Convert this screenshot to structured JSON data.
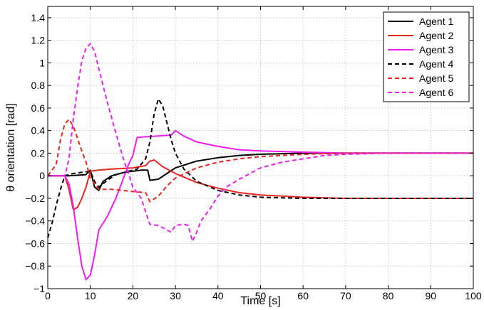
{
  "chart_data": {
    "type": "line",
    "title": "",
    "xlabel": "Time [s]",
    "ylabel": "θ orientation [rad]",
    "xlim": [
      0,
      100
    ],
    "ylim": [
      -1,
      1.5
    ],
    "x_ticks": [
      "0",
      "10",
      "20",
      "30",
      "40",
      "50",
      "60",
      "70",
      "80",
      "90",
      "100"
    ],
    "y_ticks": [
      "−1",
      "−0.8",
      "−0.6",
      "−0.4",
      "−0.2",
      "0",
      "0.2",
      "0.4",
      "0.6",
      "0.8",
      "1",
      "1.2",
      "1.4"
    ],
    "grid": true,
    "legend_position": "top-right",
    "series": [
      {
        "name": "Agent 1",
        "color": "#000000",
        "dash": "solid",
        "points": [
          [
            0,
            0
          ],
          [
            5,
            0
          ],
          [
            9,
            0.01
          ],
          [
            10,
            0.05
          ],
          [
            11,
            -0.1
          ],
          [
            12,
            -0.13
          ],
          [
            13,
            -0.05
          ],
          [
            15,
            0
          ],
          [
            18,
            0.03
          ],
          [
            22,
            0.05
          ],
          [
            23.5,
            0.05
          ],
          [
            24,
            -0.04
          ],
          [
            26,
            -0.03
          ],
          [
            28,
            0.02
          ],
          [
            30,
            0.07
          ],
          [
            35,
            0.13
          ],
          [
            40,
            0.16
          ],
          [
            45,
            0.18
          ],
          [
            50,
            0.19
          ],
          [
            60,
            0.2
          ],
          [
            70,
            0.2
          ],
          [
            80,
            0.2
          ],
          [
            90,
            0.2
          ],
          [
            100,
            0.2
          ]
        ]
      },
      {
        "name": "Agent 2",
        "color": "#e8251f",
        "dash": "solid",
        "points": [
          [
            0,
            0
          ],
          [
            4,
            0
          ],
          [
            5,
            -0.12
          ],
          [
            6,
            -0.3
          ],
          [
            7,
            -0.28
          ],
          [
            8,
            -0.2
          ],
          [
            9,
            -0.1
          ],
          [
            10,
            0.04
          ],
          [
            12,
            0.05
          ],
          [
            15,
            0.06
          ],
          [
            20,
            0.07
          ],
          [
            23,
            0.09
          ],
          [
            24,
            0.13
          ],
          [
            25,
            0.14
          ],
          [
            27,
            0.08
          ],
          [
            30,
            0.02
          ],
          [
            35,
            -0.06
          ],
          [
            40,
            -0.11
          ],
          [
            45,
            -0.15
          ],
          [
            50,
            -0.17
          ],
          [
            60,
            -0.19
          ],
          [
            70,
            -0.2
          ],
          [
            80,
            -0.2
          ],
          [
            90,
            -0.2
          ],
          [
            100,
            -0.2
          ]
        ]
      },
      {
        "name": "Agent 3",
        "color": "#f01cf0",
        "dash": "solid",
        "points": [
          [
            0,
            0
          ],
          [
            4,
            0
          ],
          [
            5,
            -0.07
          ],
          [
            6,
            -0.27
          ],
          [
            7,
            -0.55
          ],
          [
            8,
            -0.8
          ],
          [
            9,
            -0.92
          ],
          [
            10,
            -0.88
          ],
          [
            11,
            -0.7
          ],
          [
            12,
            -0.48
          ],
          [
            14,
            -0.36
          ],
          [
            16,
            -0.2
          ],
          [
            18,
            0
          ],
          [
            19,
            0.1
          ],
          [
            20,
            0.18
          ],
          [
            21,
            0.34
          ],
          [
            25,
            0.35
          ],
          [
            29,
            0.36
          ],
          [
            30,
            0.4
          ],
          [
            32,
            0.35
          ],
          [
            35,
            0.3
          ],
          [
            40,
            0.26
          ],
          [
            45,
            0.23
          ],
          [
            50,
            0.22
          ],
          [
            60,
            0.21
          ],
          [
            70,
            0.2
          ],
          [
            80,
            0.2
          ],
          [
            90,
            0.2
          ],
          [
            100,
            0.2
          ]
        ]
      },
      {
        "name": "Agent 4",
        "color": "#000000",
        "dash": "dashed",
        "points": [
          [
            0,
            -0.55
          ],
          [
            1,
            -0.42
          ],
          [
            2,
            -0.26
          ],
          [
            3,
            -0.12
          ],
          [
            4,
            0
          ],
          [
            6,
            0.02
          ],
          [
            8,
            0.03
          ],
          [
            10,
            0.04
          ],
          [
            11,
            -0.05
          ],
          [
            12,
            -0.1
          ],
          [
            14,
            -0.04
          ],
          [
            16,
            0.01
          ],
          [
            18,
            0.03
          ],
          [
            21,
            0.06
          ],
          [
            23,
            0.15
          ],
          [
            24,
            0.3
          ],
          [
            25,
            0.55
          ],
          [
            26,
            0.68
          ],
          [
            27,
            0.62
          ],
          [
            28,
            0.47
          ],
          [
            29,
            0.32
          ],
          [
            30,
            0.2
          ],
          [
            32,
            0.06
          ],
          [
            35,
            -0.05
          ],
          [
            40,
            -0.13
          ],
          [
            45,
            -0.17
          ],
          [
            50,
            -0.19
          ],
          [
            60,
            -0.2
          ],
          [
            70,
            -0.2
          ],
          [
            80,
            -0.2
          ],
          [
            90,
            -0.2
          ],
          [
            100,
            -0.2
          ]
        ]
      },
      {
        "name": "Agent 5",
        "color": "#e8251f",
        "dash": "dashed",
        "points": [
          [
            0,
            0
          ],
          [
            2,
            0.1
          ],
          [
            3,
            0.32
          ],
          [
            4,
            0.46
          ],
          [
            5,
            0.5
          ],
          [
            6,
            0.44
          ],
          [
            7,
            0.33
          ],
          [
            8,
            0.22
          ],
          [
            9,
            0.12
          ],
          [
            10,
            -0.02
          ],
          [
            12,
            -0.12
          ],
          [
            15,
            -0.12
          ],
          [
            20,
            -0.14
          ],
          [
            23,
            -0.15
          ],
          [
            24,
            -0.23
          ],
          [
            26,
            -0.18
          ],
          [
            28,
            -0.09
          ],
          [
            30,
            -0.02
          ],
          [
            35,
            0.07
          ],
          [
            40,
            0.12
          ],
          [
            45,
            0.15
          ],
          [
            50,
            0.17
          ],
          [
            60,
            0.19
          ],
          [
            70,
            0.2
          ],
          [
            80,
            0.2
          ],
          [
            90,
            0.2
          ],
          [
            100,
            0.2
          ]
        ]
      },
      {
        "name": "Agent 6",
        "color": "#f01cf0",
        "dash": "dashed",
        "points": [
          [
            0,
            0
          ],
          [
            4,
            0
          ],
          [
            5,
            0.15
          ],
          [
            6,
            0.5
          ],
          [
            7,
            0.78
          ],
          [
            8,
            1.02
          ],
          [
            9,
            1.13
          ],
          [
            10,
            1.17
          ],
          [
            11,
            1.1
          ],
          [
            12,
            0.95
          ],
          [
            14,
            0.65
          ],
          [
            16,
            0.38
          ],
          [
            18,
            0.12
          ],
          [
            19,
            0.02
          ],
          [
            20,
            -0.1
          ],
          [
            22,
            -0.2
          ],
          [
            23,
            -0.32
          ],
          [
            24,
            -0.43
          ],
          [
            26,
            -0.44
          ],
          [
            28,
            -0.48
          ],
          [
            29,
            -0.5
          ],
          [
            30,
            -0.44
          ],
          [
            32,
            -0.43
          ],
          [
            33,
            -0.44
          ],
          [
            34,
            -0.58
          ],
          [
            35,
            -0.5
          ],
          [
            36,
            -0.4
          ],
          [
            38,
            -0.3
          ],
          [
            40,
            -0.18
          ],
          [
            42,
            -0.1
          ],
          [
            45,
            -0.03
          ],
          [
            50,
            0.07
          ],
          [
            55,
            0.12
          ],
          [
            60,
            0.15
          ],
          [
            65,
            0.18
          ],
          [
            70,
            0.19
          ],
          [
            80,
            0.2
          ],
          [
            90,
            0.2
          ],
          [
            100,
            0.2
          ]
        ]
      }
    ]
  }
}
